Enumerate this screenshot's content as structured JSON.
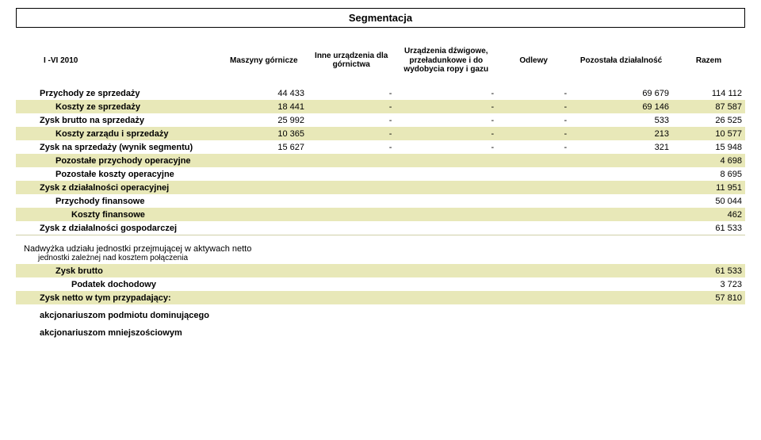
{
  "title": "Segmentacja",
  "colors": {
    "stripe": "#e8e8b8",
    "background": "#ffffff",
    "text": "#000000",
    "border": "#000000",
    "hline": "#cfcfa8"
  },
  "column_widths_pct": [
    28,
    12,
    12,
    14,
    10,
    14,
    10
  ],
  "header": {
    "row_label": "I -VI 2010",
    "cols": [
      "Maszyny górnicze",
      "Inne urządzenia dla górnictwa",
      "Urządzenia dźwigowe, przeładunkowe i do wydobycia ropy i gazu",
      "Odlewy",
      "Pozostała działalność",
      "Razem"
    ]
  },
  "rows": [
    {
      "label": "Przychody ze sprzedaży",
      "indent": 1,
      "stripe": false,
      "vals": [
        "44 433",
        "-",
        "-",
        "-",
        "69 679",
        "114 112"
      ],
      "extra_top": true
    },
    {
      "label": "Koszty ze sprzedaży",
      "indent": 2,
      "stripe": true,
      "vals": [
        "18 441",
        "-",
        "-",
        "-",
        "69 146",
        "87 587"
      ]
    },
    {
      "label": "Zysk brutto na sprzedaży",
      "indent": 1,
      "stripe": false,
      "vals": [
        "25 992",
        "-",
        "-",
        "-",
        "533",
        "26 525"
      ]
    },
    {
      "label": "Koszty zarządu i sprzedaży",
      "indent": 2,
      "stripe": true,
      "vals": [
        "10 365",
        "-",
        "-",
        "-",
        "213",
        "10 577"
      ]
    },
    {
      "label": "Zysk na sprzedaży (wynik segmentu)",
      "indent": 1,
      "stripe": false,
      "vals": [
        "15 627",
        "-",
        "-",
        "-",
        "321",
        "15 948"
      ]
    },
    {
      "label": "Pozostałe przychody operacyjne",
      "indent": 2,
      "stripe": true,
      "vals": [
        "",
        "",
        "",
        "",
        "",
        "4 698"
      ]
    },
    {
      "label": "Pozostałe koszty operacyjne",
      "indent": 2,
      "stripe": false,
      "vals": [
        "",
        "",
        "",
        "",
        "",
        "8 695"
      ]
    },
    {
      "label": "Zysk z działalności operacyjnej",
      "indent": 1,
      "stripe": true,
      "vals": [
        "",
        "",
        "",
        "",
        "",
        "11 951"
      ]
    },
    {
      "label": "Przychody finansowe",
      "indent": 2,
      "stripe": false,
      "vals": [
        "",
        "",
        "",
        "",
        "",
        "50 044"
      ]
    },
    {
      "label": "Koszty finansowe",
      "indent": 3,
      "stripe": true,
      "vals": [
        "",
        "",
        "",
        "",
        "",
        "462"
      ]
    },
    {
      "label": "Zysk z działalności gospodarczej",
      "indent": 1,
      "stripe": false,
      "vals": [
        "",
        "",
        "",
        "",
        "",
        "61 533"
      ]
    },
    {
      "type": "hline"
    },
    {
      "type": "spacer"
    },
    {
      "label": "Nadwyżka udziału jednostki przejmującej w aktywach netto",
      "sublabel": "jednostki zależnej nad kosztem połączenia",
      "indent": 0,
      "stripe": false,
      "vals": [
        "",
        "",
        "",
        "",
        "",
        ""
      ],
      "label_weight": "normal"
    },
    {
      "label": "Zysk brutto",
      "indent": 2,
      "stripe": true,
      "vals": [
        "",
        "",
        "",
        "",
        "",
        "61 533"
      ]
    },
    {
      "label": "Podatek dochodowy",
      "indent": 3,
      "stripe": false,
      "vals": [
        "",
        "",
        "",
        "",
        "",
        "3 723"
      ]
    },
    {
      "label": "Zysk netto w tym przypadający:",
      "indent": 1,
      "stripe": true,
      "vals": [
        "",
        "",
        "",
        "",
        "",
        "57 810"
      ]
    },
    {
      "label": "akcjonariuszom podmiotu dominującego",
      "indent": 1,
      "stripe": false,
      "vals": [
        "",
        "",
        "",
        "",
        "",
        ""
      ],
      "extra_top": true
    },
    {
      "label": "akcjonariuszom mniejszościowym",
      "indent": 1,
      "stripe": false,
      "vals": [
        "",
        "",
        "",
        "",
        "",
        ""
      ],
      "extra_top": true
    }
  ]
}
